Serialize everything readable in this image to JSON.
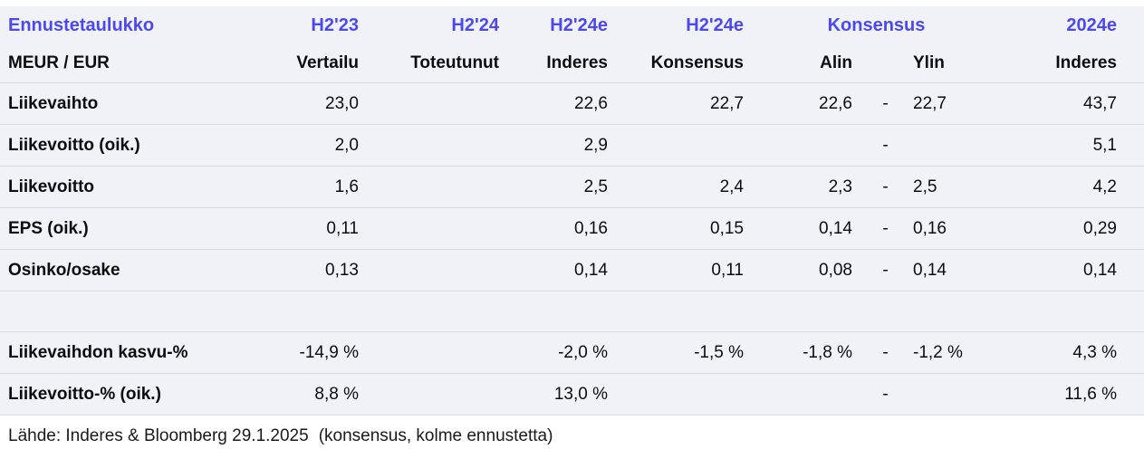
{
  "accent_color": "#4b49ed",
  "background_color": "#f1f2f8",
  "table": {
    "title": "Ennustetaulukko",
    "unit_label": "MEUR / EUR",
    "period_headers": {
      "h2_23": "H2'23",
      "h2_24": "H2'24",
      "h2_24e_inderes": "H2'24e",
      "h2_24e_konsensus": "H2'24e",
      "konsensus_range": "Konsensus",
      "y2024e": "2024e"
    },
    "sub_headers": {
      "vertailu": "Vertailu",
      "toteutunut": "Toteutunut",
      "inderes": "Inderes",
      "konsensus": "Konsensus",
      "alin": "Alin",
      "ylin": "Ylin",
      "inderes_2024": "Inderes"
    },
    "rows": [
      {
        "label": "Liikevaihto",
        "cells": [
          "23,0",
          "",
          "22,6",
          "22,7",
          "22,6",
          "-",
          "22,7",
          "43,7"
        ]
      },
      {
        "label": "Liikevoitto (oik.)",
        "cells": [
          "2,0",
          "",
          "2,9",
          "",
          "",
          "-",
          "",
          "5,1"
        ]
      },
      {
        "label": "Liikevoitto",
        "cells": [
          "1,6",
          "",
          "2,5",
          "2,4",
          "2,3",
          "-",
          "2,5",
          "4,2"
        ]
      },
      {
        "label": "EPS (oik.)",
        "cells": [
          "0,11",
          "",
          "0,16",
          "0,15",
          "0,14",
          "-",
          "0,16",
          "0,29"
        ]
      },
      {
        "label": "Osinko/osake",
        "cells": [
          "0,13",
          "",
          "0,14",
          "0,11",
          "0,08",
          "-",
          "0,14",
          "0,14"
        ]
      },
      {
        "label": "",
        "cells": [
          "",
          "",
          "",
          "",
          "",
          "",
          "",
          ""
        ]
      },
      {
        "label": "Liikevaihdon kasvu-%",
        "cells": [
          "-14,9 %",
          "",
          "-2,0 %",
          "-1,5 %",
          "-1,8 %",
          "-",
          "-1,2 %",
          "4,3 %"
        ]
      },
      {
        "label": "Liikevoitto-% (oik.)",
        "cells": [
          "8,8 %",
          "",
          "13,0 %",
          "",
          "",
          "-",
          "",
          "11,6 %"
        ]
      }
    ],
    "footer": {
      "source": "Lähde: Inderes & Bloomberg 29.1.2025",
      "note": "(konsensus, kolme ennustetta)"
    }
  }
}
